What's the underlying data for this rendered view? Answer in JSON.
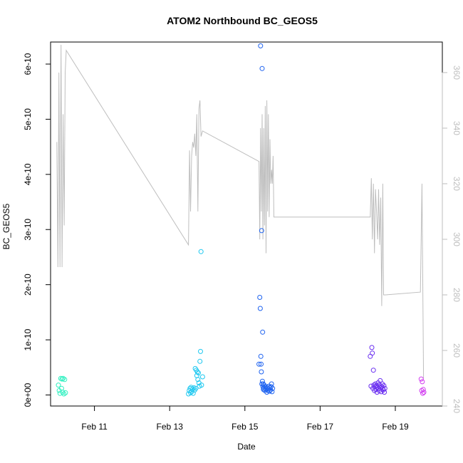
{
  "chart_data": {
    "type": "scatter",
    "title": "ATOM2 Northbound BC_GEOS5",
    "xlabel": "Date",
    "ylabel": "BC_GEOS5",
    "x_axis": {
      "type": "date",
      "range": [
        "2016-02-09T20:00",
        "2016-02-20T06:00"
      ],
      "ticks": [
        {
          "x": "2016-02-11",
          "label": "Feb 11"
        },
        {
          "x": "2016-02-13",
          "label": "Feb 13"
        },
        {
          "x": "2016-02-15",
          "label": "Feb 15"
        },
        {
          "x": "2016-02-17",
          "label": "Feb 17"
        },
        {
          "x": "2016-02-19",
          "label": "Feb 19"
        }
      ]
    },
    "y_left": {
      "range": [
        -2e-11,
        6.4e-10
      ],
      "ticks": [
        {
          "v": 0,
          "label": "0e+00"
        },
        {
          "v": 1e-10,
          "label": "1e-10"
        },
        {
          "v": 2e-10,
          "label": "2e-10"
        },
        {
          "v": 3e-10,
          "label": "3e-10"
        },
        {
          "v": 4e-10,
          "label": "4e-10"
        },
        {
          "v": 5e-10,
          "label": "5e-10"
        },
        {
          "v": 6e-10,
          "label": "6e-10"
        }
      ]
    },
    "y_right": {
      "range": [
        240,
        371
      ],
      "color": "#bebebe",
      "ticks": [
        {
          "v": 240,
          "label": "240"
        },
        {
          "v": 260,
          "label": "260"
        },
        {
          "v": 280,
          "label": "280"
        },
        {
          "v": 300,
          "label": "300"
        },
        {
          "v": 320,
          "label": "320"
        },
        {
          "v": 340,
          "label": "340"
        },
        {
          "v": 360,
          "label": "360"
        }
      ]
    },
    "series": [
      {
        "color": "#2ef0c0",
        "x": [
          "2016-02-10T01:00",
          "2016-02-10T01:30",
          "2016-02-10T02:00",
          "2016-02-10T02:30",
          "2016-02-10T03:00",
          "2016-02-10T03:20",
          "2016-02-10T03:40",
          "2016-02-10T04:00",
          "2016-02-10T04:30",
          "2016-02-10T05:00",
          "2016-02-10T05:30"
        ],
        "y": [
          1.8e-11,
          8e-12,
          3e-12,
          3e-11,
          1.2e-11,
          2.9e-11,
          5e-12,
          3e-11,
          2e-12,
          2.8e-11,
          4e-12
        ]
      },
      {
        "color": "#1ec8f0",
        "x": [
          "2016-02-13T12:00",
          "2016-02-13T12:30",
          "2016-02-13T13:00",
          "2016-02-13T13:20",
          "2016-02-13T13:40",
          "2016-02-13T14:00",
          "2016-02-13T14:30",
          "2016-02-13T15:00",
          "2016-02-13T15:30",
          "2016-02-13T16:00",
          "2016-02-13T16:20",
          "2016-02-13T16:40",
          "2016-02-13T17:00",
          "2016-02-13T17:20",
          "2016-02-13T17:40",
          "2016-02-13T18:00",
          "2016-02-13T18:20",
          "2016-02-13T18:40",
          "2016-02-13T19:00",
          "2016-02-13T19:20",
          "2016-02-13T19:40",
          "2016-02-13T20:00",
          "2016-02-13T20:20",
          "2016-02-13T21:00"
        ],
        "y": [
          2e-12,
          8e-12,
          1.2e-11,
          4e-12,
          1.4e-11,
          6e-12,
          1.1e-11,
          3e-12,
          1.3e-11,
          9e-12,
          4.8e-11,
          1.2e-11,
          4.5e-11,
          3.5e-11,
          4.2e-11,
          2.8e-11,
          4e-11,
          2.2e-11,
          1.6e-11,
          6.1e-11,
          7.9e-11,
          2.6e-10,
          1.8e-11,
          3.3e-11
        ]
      },
      {
        "color": "#1f63f0",
        "x": [
          "2016-02-15T09:00",
          "2016-02-15T09:30",
          "2016-02-15T09:50",
          "2016-02-15T10:00",
          "2016-02-15T10:10",
          "2016-02-15T10:20",
          "2016-02-15T10:30",
          "2016-02-15T10:40",
          "2016-02-15T10:50",
          "2016-02-15T11:00",
          "2016-02-15T11:10",
          "2016-02-15T11:20",
          "2016-02-15T11:30",
          "2016-02-15T11:40",
          "2016-02-15T11:50",
          "2016-02-15T12:00",
          "2016-02-15T12:20",
          "2016-02-15T12:40",
          "2016-02-15T13:00",
          "2016-02-15T13:20",
          "2016-02-15T13:40",
          "2016-02-15T14:00",
          "2016-02-15T14:20",
          "2016-02-15T14:40",
          "2016-02-15T15:00",
          "2016-02-15T15:20",
          "2016-02-15T15:40",
          "2016-02-15T16:00",
          "2016-02-15T16:20",
          "2016-02-15T16:40",
          "2016-02-15T17:00",
          "2016-02-15T17:20",
          "2016-02-15T17:40"
        ],
        "y": [
          5.6e-11,
          1.77e-10,
          1.57e-10,
          6.33e-10,
          7e-11,
          5.6e-11,
          4.2e-11,
          2.98e-10,
          2e-11,
          5.92e-10,
          2.5e-11,
          1.14e-10,
          1.5e-11,
          2e-11,
          1e-11,
          1.2e-11,
          1.8e-11,
          8e-12,
          1.5e-11,
          1.2e-11,
          1e-11,
          5e-12,
          1.4e-11,
          8e-12,
          1.1e-11,
          1.6e-11,
          7e-12,
          1.3e-11,
          9e-12,
          1.5e-11,
          2e-11,
          6e-12,
          1.2e-11
        ]
      },
      {
        "color": "#6a2ef0",
        "x": [
          "2016-02-18T08:00",
          "2016-02-18T08:30",
          "2016-02-18T09:00",
          "2016-02-18T09:20",
          "2016-02-18T09:40",
          "2016-02-18T10:00",
          "2016-02-18T10:20",
          "2016-02-18T10:40",
          "2016-02-18T11:00",
          "2016-02-18T11:20",
          "2016-02-18T11:40",
          "2016-02-18T12:00",
          "2016-02-18T12:20",
          "2016-02-18T12:40",
          "2016-02-18T13:00",
          "2016-02-18T13:20",
          "2016-02-18T13:40",
          "2016-02-18T14:00",
          "2016-02-18T14:20",
          "2016-02-18T14:40",
          "2016-02-18T15:00",
          "2016-02-18T15:20",
          "2016-02-18T15:40",
          "2016-02-18T16:00",
          "2016-02-18T16:20",
          "2016-02-18T16:40",
          "2016-02-18T17:00",
          "2016-02-18T17:20"
        ],
        "y": [
          7e-11,
          1.6e-11,
          8.6e-11,
          7.6e-11,
          1.2e-11,
          4.5e-11,
          1.8e-11,
          8e-12,
          1.5e-11,
          2e-11,
          1e-11,
          1.7e-11,
          5e-12,
          1.4e-11,
          2.2e-11,
          1.1e-11,
          8e-12,
          1.8e-11,
          2.6e-11,
          1.3e-11,
          6e-12,
          1.5e-11,
          2e-11,
          1.1e-11,
          9e-12,
          1.7e-11,
          5e-12,
          1.2e-11
        ]
      },
      {
        "color": "#d23ef0",
        "x": [
          "2016-02-19T16:30",
          "2016-02-19T16:50",
          "2016-02-19T17:10",
          "2016-02-19T17:30",
          "2016-02-19T17:50",
          "2016-02-19T18:10"
        ],
        "y": [
          2.9e-11,
          8e-12,
          2.4e-11,
          3e-12,
          1e-11,
          5e-12
        ]
      }
    ],
    "secondary_line": {
      "axis": "right",
      "color": "#bebebe",
      "x": [
        "2016-02-10T00:00",
        "2016-02-10T00:40",
        "2016-02-10T01:20",
        "2016-02-10T02:00",
        "2016-02-10T02:40",
        "2016-02-10T03:20",
        "2016-02-10T04:00",
        "2016-02-10T04:40",
        "2016-02-10T05:20",
        "2016-02-10T06:00",
        "2016-02-13T12:00",
        "2016-02-13T12:40",
        "2016-02-13T13:20",
        "2016-02-13T14:00",
        "2016-02-13T14:40",
        "2016-02-13T15:20",
        "2016-02-13T16:00",
        "2016-02-13T16:40",
        "2016-02-13T17:20",
        "2016-02-13T18:00",
        "2016-02-13T18:40",
        "2016-02-13T19:20",
        "2016-02-13T20:00",
        "2016-02-13T21:00",
        "2016-02-15T09:00",
        "2016-02-15T09:30",
        "2016-02-15T10:00",
        "2016-02-15T10:30",
        "2016-02-15T11:00",
        "2016-02-15T11:30",
        "2016-02-15T12:00",
        "2016-02-15T12:30",
        "2016-02-15T13:00",
        "2016-02-15T13:30",
        "2016-02-15T14:00",
        "2016-02-15T14:30",
        "2016-02-15T15:00",
        "2016-02-15T15:30",
        "2016-02-15T16:00",
        "2016-02-15T16:30",
        "2016-02-15T17:00",
        "2016-02-15T17:30",
        "2016-02-15T18:00",
        "2016-02-15T18:30",
        "2016-02-18T08:00",
        "2016-02-18T08:40",
        "2016-02-18T09:20",
        "2016-02-18T10:00",
        "2016-02-18T10:40",
        "2016-02-18T11:20",
        "2016-02-18T12:00",
        "2016-02-18T12:40",
        "2016-02-18T13:20",
        "2016-02-18T14:00",
        "2016-02-18T14:40",
        "2016-02-18T15:20",
        "2016-02-18T16:00",
        "2016-02-18T16:30",
        "2016-02-18T17:00",
        "2016-02-18T17:40",
        "2016-02-19T16:00",
        "2016-02-19T17:00",
        "2016-02-19T18:00"
      ],
      "y": [
        335,
        290,
        360,
        290,
        370,
        290,
        345,
        305,
        360,
        368,
        298,
        332,
        310,
        330,
        335,
        333,
        338,
        330,
        345,
        310,
        347,
        350,
        337,
        339,
        328,
        300,
        340,
        310,
        345,
        300,
        340,
        305,
        348,
        295,
        350,
        310,
        345,
        308,
        336,
        320,
        325,
        320,
        330,
        308,
        308,
        322,
        300,
        320,
        295,
        318,
        310,
        300,
        318,
        298,
        315,
        276,
        320,
        280,
        280,
        280,
        281,
        320,
        250
      ]
    }
  }
}
